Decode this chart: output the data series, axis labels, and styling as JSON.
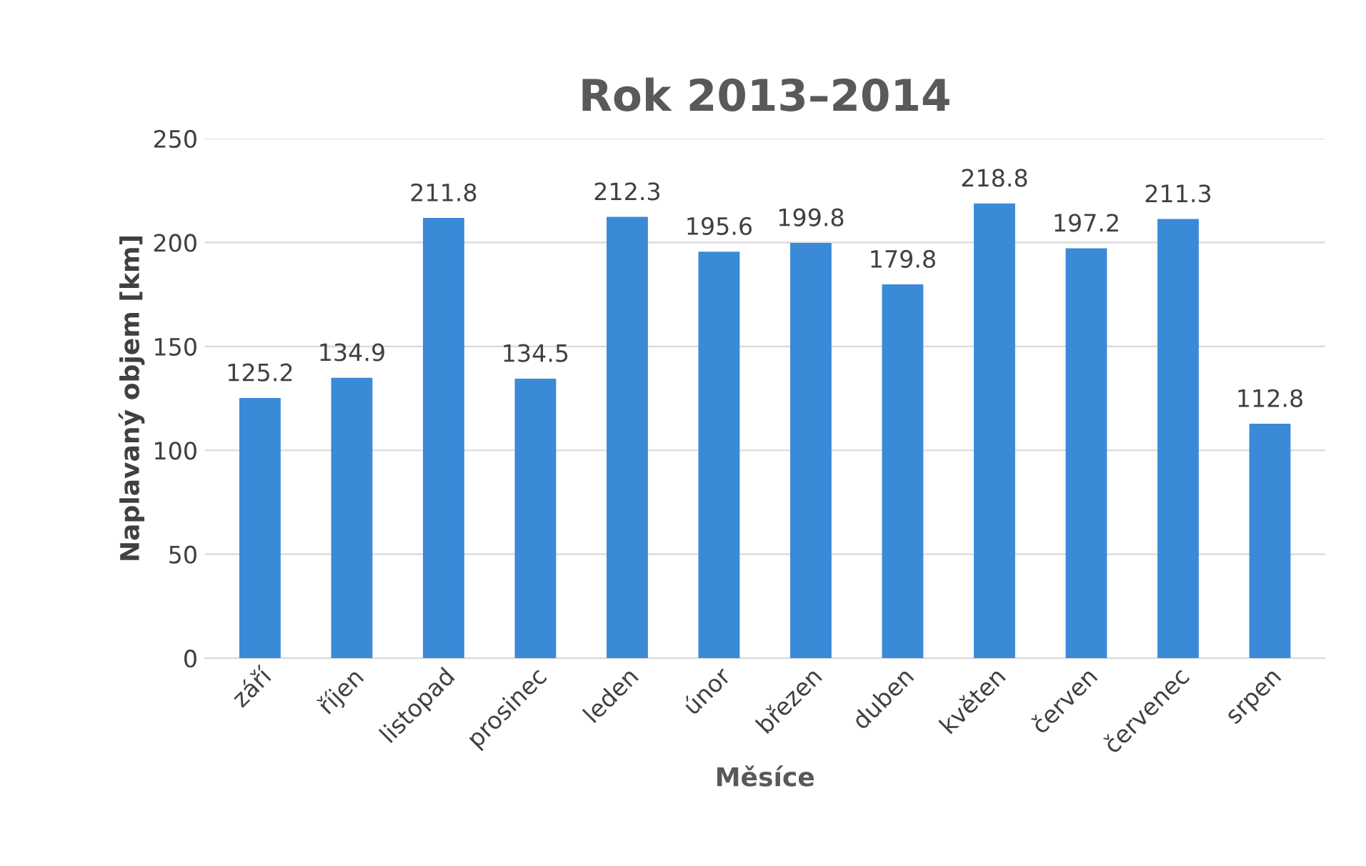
{
  "chart_data": {
    "type": "bar",
    "title": "Rok 2013–2014",
    "xlabel": "Měsíce",
    "ylabel": "Naplavaný objem [km]",
    "categories": [
      "září",
      "říjen",
      "listopad",
      "prosinec",
      "leden",
      "únor",
      "březen",
      "duben",
      "květen",
      "červen",
      "červenec",
      "srpen"
    ],
    "values": [
      125.2,
      134.9,
      211.8,
      134.5,
      212.3,
      195.6,
      199.8,
      179.8,
      218.8,
      197.2,
      211.3,
      112.8
    ],
    "color": "#3a8ad8",
    "ylim": [
      0,
      250
    ],
    "yticks": [
      0,
      50,
      100,
      150,
      200,
      250
    ],
    "grid": "y",
    "data_labels": true
  }
}
